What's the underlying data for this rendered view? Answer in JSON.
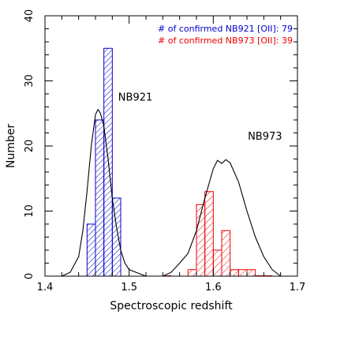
{
  "chart_data": {
    "type": "bar",
    "xlabel": "Spectroscopic redshift",
    "ylabel": "Number",
    "xlim": [
      1.4,
      1.7
    ],
    "ylim": [
      0,
      40
    ],
    "xticks": [
      "1.4",
      "1.5",
      "1.6",
      "1.7"
    ],
    "yticks": [
      "0",
      "10",
      "20",
      "30",
      "40"
    ],
    "grid": false,
    "legend": {
      "placement": "top-right",
      "entries": [
        {
          "text": "# of confirmed NB921 [OII]: 79",
          "color": "#0000cc"
        },
        {
          "text": "# of confirmed NB973 [OII]: 39",
          "color": "#ee0000"
        }
      ]
    },
    "annotations": [
      {
        "text": "NB921",
        "x": 1.487,
        "y": 27
      },
      {
        "text": "NB973",
        "x": 1.641,
        "y": 21
      }
    ],
    "bin_width": 0.01,
    "series": [
      {
        "name": "NB921",
        "color": "#0000cc",
        "bins": [
          {
            "x0": 1.45,
            "count": 8
          },
          {
            "x0": 1.46,
            "count": 24
          },
          {
            "x0": 1.47,
            "count": 35
          },
          {
            "x0": 1.48,
            "count": 12
          }
        ],
        "curve": [
          [
            1.42,
            0
          ],
          [
            1.43,
            0.6
          ],
          [
            1.44,
            3
          ],
          [
            1.445,
            7
          ],
          [
            1.45,
            13
          ],
          [
            1.455,
            20
          ],
          [
            1.46,
            24.8
          ],
          [
            1.463,
            25.6
          ],
          [
            1.466,
            25
          ],
          [
            1.47,
            23
          ],
          [
            1.475,
            18
          ],
          [
            1.48,
            12
          ],
          [
            1.485,
            7.5
          ],
          [
            1.49,
            4
          ],
          [
            1.495,
            2
          ],
          [
            1.5,
            1
          ],
          [
            1.51,
            0.5
          ],
          [
            1.52,
            0
          ]
        ]
      },
      {
        "name": "NB973",
        "color": "#ee0000",
        "bins": [
          {
            "x0": 1.54,
            "count": 0
          },
          {
            "x0": 1.57,
            "count": 1
          },
          {
            "x0": 1.58,
            "count": 11
          },
          {
            "x0": 1.59,
            "count": 13
          },
          {
            "x0": 1.6,
            "count": 4
          },
          {
            "x0": 1.61,
            "count": 7
          },
          {
            "x0": 1.62,
            "count": 1
          },
          {
            "x0": 1.63,
            "count": 1
          },
          {
            "x0": 1.64,
            "count": 1
          },
          {
            "x0": 1.65,
            "count": 0
          },
          {
            "x0": 1.66,
            "count": 0
          }
        ],
        "curve": [
          [
            1.54,
            0
          ],
          [
            1.55,
            0.6
          ],
          [
            1.56,
            2
          ],
          [
            1.57,
            3.5
          ],
          [
            1.58,
            7
          ],
          [
            1.59,
            12
          ],
          [
            1.6,
            16.5
          ],
          [
            1.605,
            17.8
          ],
          [
            1.61,
            17.3
          ],
          [
            1.615,
            17.9
          ],
          [
            1.62,
            17.4
          ],
          [
            1.63,
            14.5
          ],
          [
            1.64,
            10
          ],
          [
            1.65,
            6
          ],
          [
            1.66,
            3
          ],
          [
            1.67,
            1
          ],
          [
            1.68,
            0
          ]
        ]
      }
    ]
  }
}
